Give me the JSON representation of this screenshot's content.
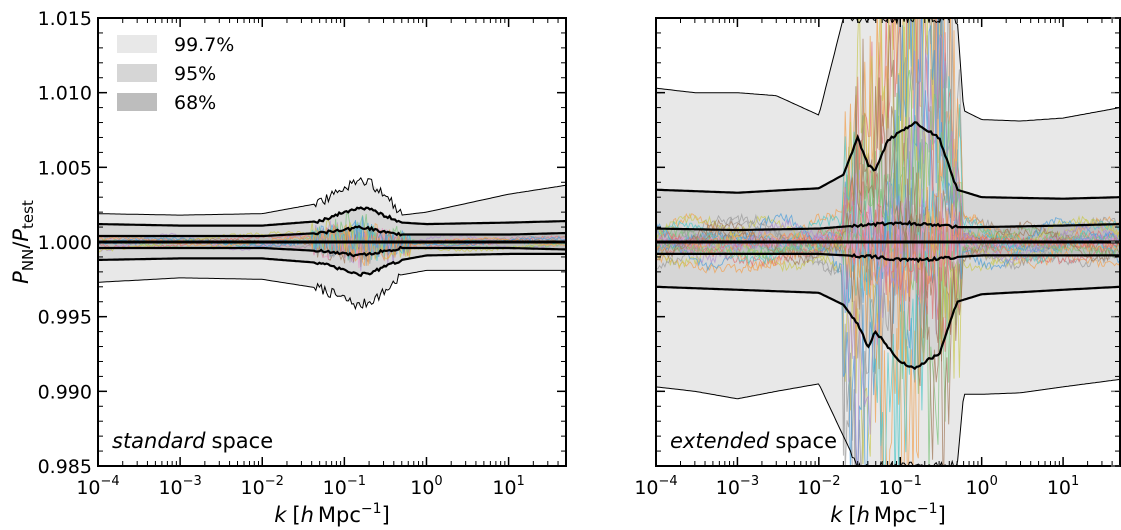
{
  "chart_data": [
    {
      "type": "area",
      "panel_label": "standard",
      "panel_label_suffix": "space",
      "xlabel_parts": [
        "k",
        "[",
        "h",
        "Mpc",
        "−1",
        "]"
      ],
      "ylabel_parts": [
        "P",
        "NN",
        "/",
        "P",
        "test"
      ],
      "x_scale": "log",
      "xlim": [
        0.0001,
        50
      ],
      "ylim": [
        0.985,
        1.015
      ],
      "x_ticks": [
        0.0001,
        0.001,
        0.01,
        0.1,
        1,
        10
      ],
      "x_tick_labels": [
        [
          "10",
          "−4"
        ],
        [
          "10",
          "−3"
        ],
        [
          "10",
          "−2"
        ],
        [
          "10",
          "−1"
        ],
        [
          "10",
          "0"
        ],
        [
          "10",
          "1"
        ]
      ],
      "y_ticks": [
        0.985,
        0.99,
        0.995,
        1.0,
        1.005,
        1.01,
        1.015
      ],
      "y_tick_labels": [
        "0.985",
        "0.990",
        "0.995",
        "1.000",
        "1.005",
        "1.010",
        "1.015"
      ],
      "legend": {
        "placement": "top-left",
        "entries": [
          {
            "label": "99.7%",
            "color": "#e8e8e8"
          },
          {
            "label": "95%",
            "color": "#d6d6d6"
          },
          {
            "label": "68%",
            "color": "#bdbdbd"
          }
        ]
      },
      "bands": [
        {
          "level": "99.7%",
          "color": "#e8e8e8",
          "x": [
            0.0001,
            0.001,
            0.01,
            0.05,
            0.1,
            0.15,
            0.2,
            0.3,
            0.5,
            1,
            10,
            50
          ],
          "upper": [
            1.0019,
            1.0018,
            1.0019,
            1.0026,
            1.0036,
            1.004,
            1.004,
            1.0033,
            1.0018,
            1.002,
            1.0032,
            1.0038
          ],
          "lower": [
            0.9973,
            0.9976,
            0.9975,
            0.9969,
            0.9962,
            0.9957,
            0.996,
            0.9966,
            0.9978,
            0.9981,
            0.9981,
            0.9981
          ]
        },
        {
          "level": "95%",
          "color": "#d6d6d6",
          "x": [
            0.0001,
            0.001,
            0.01,
            0.05,
            0.1,
            0.15,
            0.2,
            0.3,
            0.5,
            1,
            10,
            50
          ],
          "upper": [
            1.0012,
            1.0011,
            1.0011,
            1.0014,
            1.002,
            1.0023,
            1.0022,
            1.0018,
            1.0013,
            1.0012,
            1.0013,
            1.0014
          ],
          "lower": [
            0.9988,
            0.9989,
            0.9989,
            0.9986,
            0.9981,
            0.9978,
            0.9979,
            0.9983,
            0.9988,
            0.9991,
            0.9992,
            0.9992
          ]
        },
        {
          "level": "68%",
          "color": "#bdbdbd",
          "x": [
            0.0001,
            0.001,
            0.01,
            0.05,
            0.1,
            0.15,
            0.2,
            0.3,
            0.5,
            1,
            10,
            50
          ],
          "upper": [
            1.0004,
            1.0004,
            1.0004,
            1.0006,
            1.0008,
            1.001,
            1.0009,
            1.0007,
            1.0005,
            1.0005,
            1.0005,
            1.0006
          ],
          "lower": [
            0.9996,
            0.9996,
            0.9996,
            0.9994,
            0.9992,
            0.9991,
            0.9992,
            0.9994,
            0.9996,
            0.9996,
            0.9996,
            0.9995
          ]
        }
      ]
    },
    {
      "type": "area",
      "panel_label": "extended",
      "panel_label_suffix": "space",
      "xlabel_parts": [
        "k",
        "[",
        "h",
        "Mpc",
        "−1",
        "]"
      ],
      "x_scale": "log",
      "xlim": [
        0.0001,
        50
      ],
      "ylim": [
        0.985,
        1.015
      ],
      "x_ticks": [
        0.0001,
        0.001,
        0.01,
        0.1,
        1,
        10
      ],
      "x_tick_labels": [
        [
          "10",
          "−4"
        ],
        [
          "10",
          "−3"
        ],
        [
          "10",
          "−2"
        ],
        [
          "10",
          "−1"
        ],
        [
          "10",
          "0"
        ],
        [
          "10",
          "1"
        ]
      ],
      "y_ticks": [
        0.985,
        0.99,
        0.995,
        1.0,
        1.005,
        1.01,
        1.015
      ],
      "bands": [
        {
          "level": "99.7%",
          "color": "#e8e8e8",
          "x": [
            0.0001,
            0.0003,
            0.001,
            0.003,
            0.01,
            0.02,
            0.03,
            0.05,
            0.1,
            0.2,
            0.4,
            0.5,
            0.6,
            1,
            3,
            10,
            50
          ],
          "upper": [
            1.0103,
            1.01,
            1.01,
            1.0098,
            1.0085,
            1.015,
            1.015,
            1.015,
            1.015,
            1.015,
            1.015,
            1.015,
            1.0088,
            1.0082,
            1.0081,
            1.0083,
            1.009
          ],
          "lower": [
            0.9903,
            0.99,
            0.9895,
            0.99,
            0.9905,
            0.987,
            0.985,
            0.985,
            0.985,
            0.985,
            0.985,
            0.985,
            0.9898,
            0.9898,
            0.9899,
            0.9903,
            0.9908
          ]
        },
        {
          "level": "95%",
          "color": "#d6d6d6",
          "x": [
            0.0001,
            0.001,
            0.01,
            0.02,
            0.03,
            0.04,
            0.05,
            0.07,
            0.1,
            0.15,
            0.2,
            0.3,
            0.5,
            1,
            10,
            50
          ],
          "upper": [
            1.0035,
            1.0033,
            1.0036,
            1.0045,
            1.007,
            1.0052,
            1.0048,
            1.0068,
            1.0074,
            1.008,
            1.0076,
            1.007,
            1.0035,
            1.003,
            1.0029,
            1.003
          ],
          "lower": [
            0.997,
            0.9968,
            0.9966,
            0.9958,
            0.9945,
            0.993,
            0.994,
            0.993,
            0.992,
            0.9915,
            0.992,
            0.9925,
            0.996,
            0.9965,
            0.9968,
            0.997
          ]
        },
        {
          "level": "68%",
          "color": "#bdbdbd",
          "x": [
            0.0001,
            0.001,
            0.01,
            0.05,
            0.1,
            0.2,
            0.5,
            1,
            10,
            50
          ],
          "upper": [
            1.0009,
            1.0008,
            1.0009,
            1.0012,
            1.0013,
            1.0012,
            1.001,
            1.001,
            1.0011,
            1.0012
          ],
          "lower": [
            0.9992,
            0.9992,
            0.9992,
            0.999,
            0.9988,
            0.9988,
            0.999,
            0.9991,
            0.9991,
            0.9991
          ]
        }
      ]
    }
  ],
  "colors": {
    "band_99_7": "#e8e8e8",
    "band_95": "#d6d6d6",
    "band_68": "#bdbdbd",
    "median": "#000000",
    "sample_lines": [
      "#4c9ed9",
      "#f0a050",
      "#7cc37c",
      "#e07070",
      "#b08fd0",
      "#a0785a",
      "#e89cc8",
      "#9a9a9a",
      "#c8c850",
      "#50c8c8"
    ]
  }
}
